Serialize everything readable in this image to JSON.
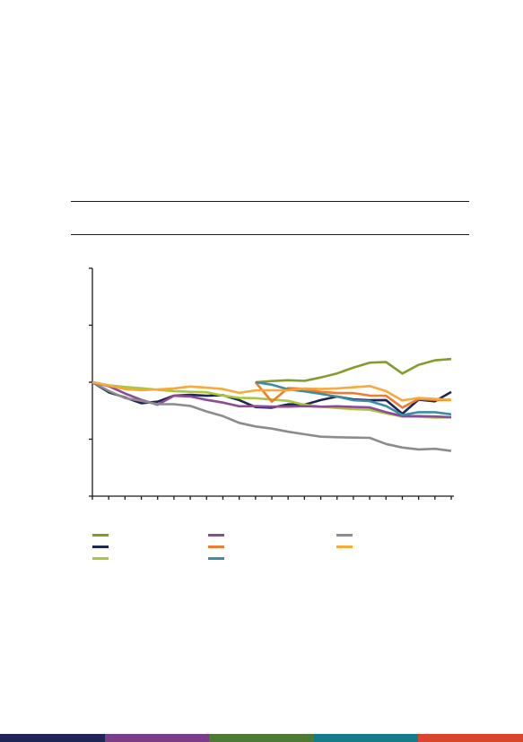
{
  "chart_data": {
    "type": "line",
    "title": "",
    "xlabel": "",
    "ylabel": "",
    "x": [
      0,
      1,
      2,
      3,
      4,
      5,
      6,
      7,
      8,
      9,
      10,
      11,
      12,
      13,
      14,
      15,
      16,
      17,
      18,
      19,
      20,
      21,
      22
    ],
    "ylim": [
      0,
      200
    ],
    "grid": false,
    "legend_placement": "bottom",
    "series": [
      {
        "color": "#839c2e",
        "values": [
          null,
          null,
          null,
          null,
          null,
          null,
          null,
          null,
          null,
          null,
          100,
          101,
          101.7,
          101.2,
          104.2,
          107.7,
          112.8,
          117.2,
          117.7,
          107.6,
          115.3,
          119.2,
          120.3
        ]
      },
      {
        "color": "#1f2657",
        "values": [
          100,
          91.2,
          86.6,
          81.6,
          82.9,
          88.2,
          88.9,
          88.1,
          88.6,
          84.3,
          78.2,
          77.6,
          80.6,
          80.2,
          84.3,
          87.4,
          84.9,
          84.2,
          84.3,
          72.4,
          84.7,
          83.2,
          91.4
        ]
      },
      {
        "color": "#a9c73d",
        "values": [
          100,
          97.3,
          95.8,
          94.7,
          93.4,
          92.2,
          91.6,
          91.2,
          88.3,
          86.3,
          86.0,
          84.8,
          83.6,
          80.2,
          78.6,
          77.4,
          76.4,
          75.8,
          72.7,
          69.8,
          69.8,
          69.0,
          69.2
        ]
      },
      {
        "color": "#8d4a96",
        "values": [
          100,
          96.6,
          90.1,
          84.6,
          80.2,
          88.1,
          87.5,
          84.5,
          82.1,
          78.9,
          79.0,
          78.6,
          78.6,
          79.0,
          78.5,
          78.9,
          78.3,
          77.9,
          73.7,
          70.3,
          70.2,
          69.9,
          69.2
        ]
      },
      {
        "color": "#ee7d2e",
        "values": [
          null,
          null,
          null,
          null,
          null,
          null,
          null,
          null,
          null,
          null,
          100,
          83.0,
          94.9,
          94.2,
          91.5,
          90.5,
          90.5,
          88.3,
          88.1,
          77.7,
          85.3,
          84.5,
          84.5
        ]
      },
      {
        "color": "#3c8da3",
        "values": [
          null,
          null,
          null,
          null,
          null,
          null,
          null,
          null,
          null,
          null,
          100,
          97.8,
          93.7,
          92.0,
          89.8,
          87.4,
          84.2,
          83.4,
          79.1,
          71.2,
          73.7,
          73.7,
          71.8
        ]
      },
      {
        "color": "#8c8c8c",
        "values": [
          100,
          92.4,
          86.1,
          83.7,
          80.7,
          80.7,
          79.2,
          74.3,
          70.2,
          64.3,
          61.2,
          59.3,
          56.5,
          54.3,
          52.2,
          51.7,
          51.4,
          51.2,
          45.8,
          42.7,
          41.0,
          41.6,
          39.7
        ]
      },
      {
        "color": "#f7a93a",
        "values": [
          100,
          97.1,
          93.9,
          93.0,
          93.7,
          94.6,
          96.2,
          95.2,
          94.0,
          90.6,
          92.8,
          92.9,
          92.8,
          94.5,
          94.0,
          94.6,
          95.5,
          96.6,
          92.2,
          83.9,
          86.2,
          85.4,
          84.5
        ]
      }
    ],
    "legend_order": [
      0,
      3,
      6,
      1,
      4,
      7,
      2,
      5
    ]
  },
  "colors": {
    "axis": "#1a1a1a",
    "footer_bands": [
      "#1f2657",
      "#7a3d89",
      "#4d7a34",
      "#167c8c",
      "#d9462b"
    ]
  }
}
